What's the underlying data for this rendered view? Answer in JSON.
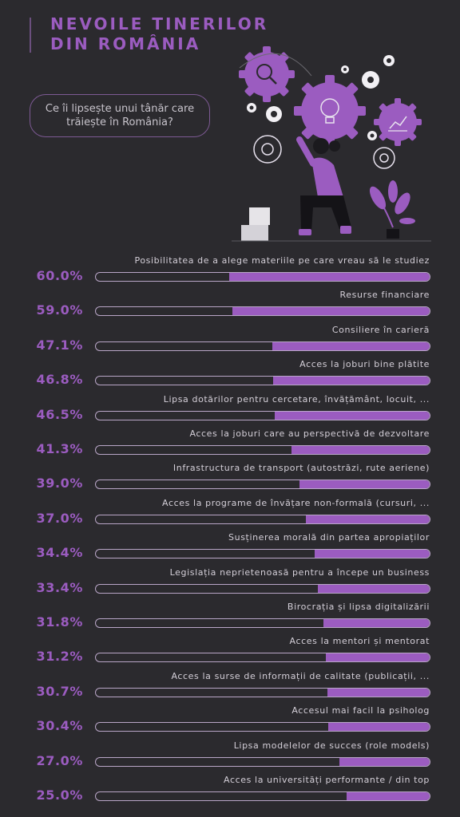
{
  "header": {
    "title_line1": "NEVOILE TINERILOR",
    "title_line2": "DIN ROMÂNIA",
    "question": "Ce îi lipsește unui tânăr care trăiește în România?"
  },
  "colors": {
    "background": "#2b2a2e",
    "accent": "#9b5cc0",
    "track": "#b9a6c7"
  },
  "chart_data": {
    "type": "bar",
    "orientation": "horizontal",
    "categories": [
      "Posibilitatea de a alege materiile pe care vreau să le studiez",
      "Resurse financiare",
      "Consiliere în carieră",
      "Acces la joburi bine plătite",
      "Lipsa dotărilor pentru cercetare, învățământ, locuit, ...",
      "Acces la joburi care au perspectivă de dezvoltare",
      "Infrastructura de transport (autostrăzi, rute aeriene)",
      "Acces la programe de învățare non-formală (cursuri, ...",
      "Susținerea morală din partea apropiaților",
      "Legislația neprietenoasă pentru a începe un business",
      "Birocrația și lipsa digitalizării",
      "Acces la mentori și mentorat",
      "Acces la surse de informații de calitate (publicații, ...",
      "Accesul mai facil la psiholog",
      "Lipsa modelelor de succes (role models)",
      "Acces la universități performante / din top"
    ],
    "values": [
      60.0,
      59.0,
      47.1,
      46.8,
      46.5,
      41.3,
      39.0,
      37.0,
      34.4,
      33.4,
      31.8,
      31.2,
      30.7,
      30.4,
      27.0,
      25.0
    ],
    "labels": [
      "60.0%",
      "59.0%",
      "47.1%",
      "46.8%",
      "46.5%",
      "41.3%",
      "39.0%",
      "37.0%",
      "34.4%",
      "33.4%",
      "31.8%",
      "31.2%",
      "30.7%",
      "30.4%",
      "27.0%",
      "25.0%"
    ],
    "xlim": [
      0,
      100
    ],
    "unit": "%"
  }
}
